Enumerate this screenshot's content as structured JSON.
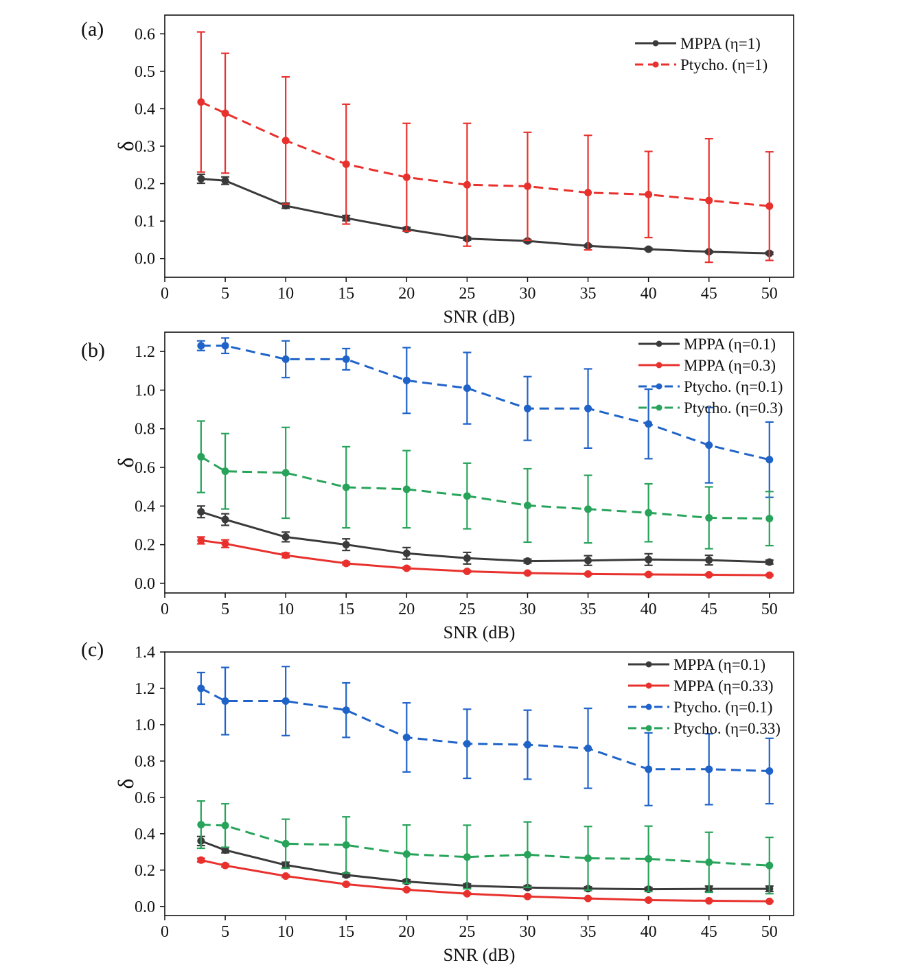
{
  "chart_data": [
    {
      "type": "line",
      "panel_label": "(a)",
      "xlabel": "SNR (dB)",
      "ylabel": "δ",
      "xlim": [
        0,
        52
      ],
      "ylim": [
        -0.05,
        0.65
      ],
      "xticks": [
        0,
        5,
        10,
        15,
        20,
        25,
        30,
        35,
        40,
        45,
        50
      ],
      "yticks": [
        0.0,
        0.1,
        0.2,
        0.3,
        0.4,
        0.5,
        0.6
      ],
      "ytick_decimals": 1,
      "grid": false,
      "legend_position": "top-right",
      "x": [
        3,
        5,
        10,
        15,
        20,
        25,
        30,
        35,
        40,
        45,
        50
      ],
      "series": [
        {
          "name": "MPPA (η=1)",
          "color": "#3a3a3a",
          "dash": "solid",
          "values": [
            0.213,
            0.208,
            0.141,
            0.108,
            0.078,
            0.053,
            0.047,
            0.034,
            0.025,
            0.018,
            0.014
          ],
          "errors": [
            0.012,
            0.01,
            0.007,
            0.007,
            0.005,
            0.004,
            0.004,
            0.003,
            0.003,
            0.003,
            0.003
          ]
        },
        {
          "name": "Ptycho. (η=1)",
          "color": "#e8312d",
          "dash": "dashed",
          "values": [
            0.418,
            0.388,
            0.315,
            0.252,
            0.217,
            0.197,
            0.193,
            0.176,
            0.171,
            0.155,
            0.14
          ],
          "errors": [
            0.187,
            0.16,
            0.17,
            0.16,
            0.144,
            0.164,
            0.144,
            0.153,
            0.115,
            0.165,
            0.145
          ]
        }
      ]
    },
    {
      "type": "line",
      "panel_label": "(b)",
      "xlabel": "SNR (dB)",
      "ylabel": "δ",
      "xlim": [
        0,
        52
      ],
      "ylim": [
        -0.05,
        1.3
      ],
      "xticks": [
        0,
        5,
        10,
        15,
        20,
        25,
        30,
        35,
        40,
        45,
        50
      ],
      "yticks": [
        0.0,
        0.2,
        0.4,
        0.6,
        0.8,
        1.0,
        1.2
      ],
      "ytick_decimals": 1,
      "grid": false,
      "legend_position": "top-right",
      "x": [
        3,
        5,
        10,
        15,
        20,
        25,
        30,
        35,
        40,
        45,
        50
      ],
      "series": [
        {
          "name": "MPPA (η=0.1)",
          "color": "#3a3a3a",
          "dash": "solid",
          "values": [
            0.37,
            0.33,
            0.24,
            0.2,
            0.155,
            0.13,
            0.115,
            0.118,
            0.123,
            0.12,
            0.11
          ],
          "errors": [
            0.03,
            0.03,
            0.025,
            0.03,
            0.03,
            0.03,
            0.01,
            0.025,
            0.03,
            0.025,
            0.01
          ]
        },
        {
          "name": "MPPA (η=0.3)",
          "color": "#e8312d",
          "dash": "solid",
          "values": [
            0.222,
            0.205,
            0.145,
            0.103,
            0.078,
            0.062,
            0.053,
            0.048,
            0.046,
            0.044,
            0.042
          ],
          "errors": [
            0.018,
            0.02,
            0.012,
            0.008,
            0.006,
            0.005,
            0.004,
            0.004,
            0.004,
            0.004,
            0.004
          ]
        },
        {
          "name": "Ptycho. (η=0.1)",
          "color": "#1f63c9",
          "dash": "dashed",
          "values": [
            1.23,
            1.23,
            1.16,
            1.16,
            1.05,
            1.01,
            0.905,
            0.905,
            0.825,
            0.715,
            0.64
          ],
          "errors": [
            0.025,
            0.04,
            0.095,
            0.055,
            0.17,
            0.185,
            0.165,
            0.205,
            0.18,
            0.195,
            0.195
          ]
        },
        {
          "name": "Ptycho. (η=0.3)",
          "color": "#27a35a",
          "dash": "dashed",
          "values": [
            0.655,
            0.58,
            0.572,
            0.497,
            0.487,
            0.452,
            0.403,
            0.384,
            0.365,
            0.339,
            0.335
          ],
          "errors": [
            0.185,
            0.195,
            0.235,
            0.21,
            0.2,
            0.17,
            0.19,
            0.175,
            0.15,
            0.16,
            0.14
          ]
        }
      ]
    },
    {
      "type": "line",
      "panel_label": "(c)",
      "xlabel": "SNR (dB)",
      "ylabel": "δ",
      "xlim": [
        0,
        52
      ],
      "ylim": [
        -0.05,
        1.4
      ],
      "xticks": [
        0,
        5,
        10,
        15,
        20,
        25,
        30,
        35,
        40,
        45,
        50
      ],
      "yticks": [
        0.0,
        0.2,
        0.4,
        0.6,
        0.8,
        1.0,
        1.2,
        1.4
      ],
      "ytick_decimals": 1,
      "grid": false,
      "legend_position": "top-right",
      "x": [
        3,
        5,
        10,
        15,
        20,
        25,
        30,
        35,
        40,
        45,
        50
      ],
      "series": [
        {
          "name": "MPPA (η=0.1)",
          "color": "#3a3a3a",
          "dash": "solid",
          "values": [
            0.36,
            0.31,
            0.228,
            0.173,
            0.137,
            0.114,
            0.104,
            0.098,
            0.095,
            0.097,
            0.097
          ],
          "errors": [
            0.025,
            0.015,
            0.015,
            0.01,
            0.01,
            0.01,
            0.01,
            0.01,
            0.01,
            0.015,
            0.015
          ]
        },
        {
          "name": "MPPA (η=0.33)",
          "color": "#e8312d",
          "dash": "solid",
          "values": [
            0.255,
            0.225,
            0.167,
            0.122,
            0.092,
            0.07,
            0.055,
            0.044,
            0.035,
            0.031,
            0.028
          ],
          "errors": [
            0.01,
            0.008,
            0.006,
            0.005,
            0.004,
            0.004,
            0.003,
            0.003,
            0.003,
            0.003,
            0.003
          ]
        },
        {
          "name": "Ptycho. (η=0.1)",
          "color": "#1f63c9",
          "dash": "dashed",
          "values": [
            1.2,
            1.13,
            1.13,
            1.08,
            0.93,
            0.895,
            0.89,
            0.87,
            0.755,
            0.755,
            0.745
          ],
          "errors": [
            0.087,
            0.185,
            0.19,
            0.15,
            0.19,
            0.19,
            0.19,
            0.22,
            0.2,
            0.195,
            0.18
          ]
        },
        {
          "name": "Ptycho. (η=0.33)",
          "color": "#27a35a",
          "dash": "dashed",
          "values": [
            0.45,
            0.445,
            0.345,
            0.338,
            0.288,
            0.272,
            0.285,
            0.265,
            0.262,
            0.243,
            0.225
          ],
          "errors": [
            0.13,
            0.12,
            0.135,
            0.155,
            0.16,
            0.175,
            0.18,
            0.175,
            0.18,
            0.165,
            0.155
          ]
        }
      ]
    }
  ]
}
